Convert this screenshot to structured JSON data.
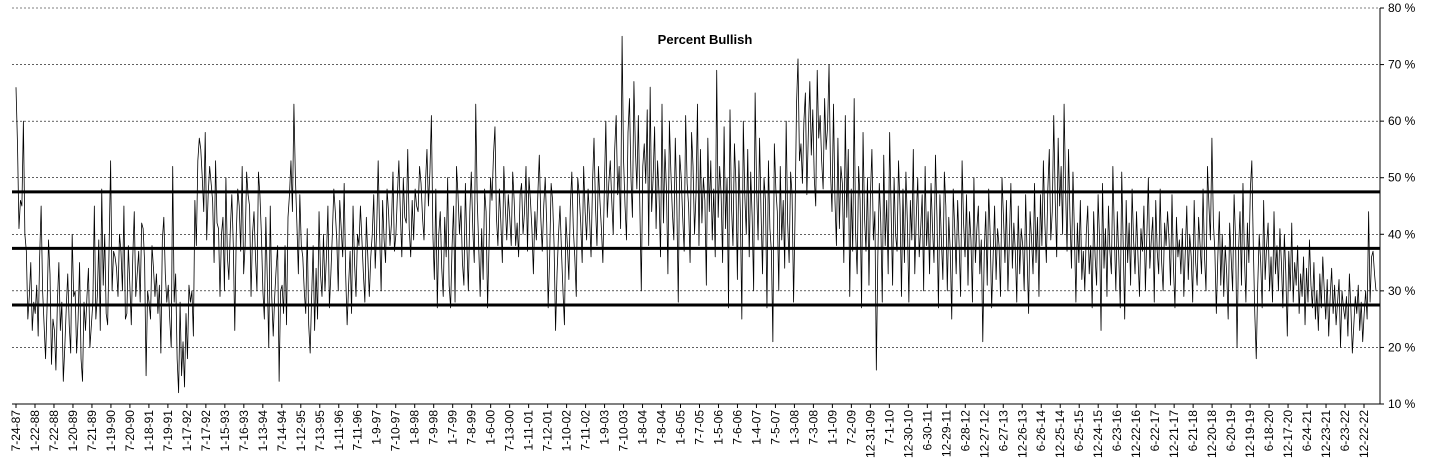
{
  "chart_data": {
    "type": "line",
    "title": "Percent Bullish",
    "xlabel": "",
    "ylabel": "",
    "ylim": [
      10,
      80
    ],
    "y_ticks": [
      10,
      20,
      30,
      40,
      50,
      60,
      70,
      80
    ],
    "y_tick_labels": [
      "10 %",
      "20 %",
      "30 %",
      "40 %",
      "50 %",
      "60 %",
      "70 %",
      "80 %"
    ],
    "y_axis_side": "right",
    "grid": "horizontal dashed",
    "x_tick_labels": [
      "7-24-87",
      "1-22-88",
      "7-22-88",
      "1-20-89",
      "7-21-89",
      "1-19-90",
      "7-20-90",
      "1-18-91",
      "7-19-91",
      "1-17-92",
      "7-17-92",
      "1-15-93",
      "7-16-93",
      "1-13-94",
      "7-14-94",
      "1-12-95",
      "7-13-95",
      "1-11-96",
      "7-11-96",
      "1-9-97",
      "7-10-97",
      "1-8-98",
      "7-9-98",
      "1-7-99",
      "7-8-99",
      "1-6-00",
      "7-13-00",
      "1-11-01",
      "7-12-01",
      "1-10-02",
      "7-11-02",
      "1-9-03",
      "7-10-03",
      "1-8-04",
      "7-8-04",
      "1-6-05",
      "7-7-05",
      "1-5-06",
      "7-6-06",
      "1-4-07",
      "7-5-07",
      "1-3-08",
      "7-3-08",
      "1-1-09",
      "7-2-09",
      "12-31-09",
      "7-1-10",
      "12-30-10",
      "6-30-11",
      "12-29-11",
      "6-28-12",
      "12-27-12",
      "6-27-13",
      "12-26-13",
      "6-26-14",
      "12-25-14",
      "6-25-15",
      "12-24-15",
      "6-23-16",
      "12-22-16",
      "6-22-17",
      "12-21-17",
      "6-21-18",
      "12-20-18",
      "6-20-19",
      "12-19-19",
      "6-18-20",
      "12-17-20",
      "6-24-21",
      "12-23-21",
      "6-23-22",
      "12-22-22"
    ],
    "reference_lines": [
      47.5,
      37.5,
      27.5
    ],
    "series": [
      {
        "color": "#000000",
        "values": [
          66,
          56,
          41,
          46,
          45,
          60,
          40,
          37,
          25,
          29,
          35,
          23,
          28,
          26,
          31,
          22,
          36,
          45,
          30,
          24,
          18,
          27,
          39,
          33,
          17,
          25,
          23,
          16,
          28,
          35,
          23,
          28,
          14,
          20,
          27,
          33,
          24,
          19,
          40,
          29,
          30,
          19,
          25,
          35,
          18,
          14,
          28,
          23,
          29,
          34,
          20,
          24,
          28,
          45,
          25,
          29,
          39,
          23,
          48,
          31,
          40,
          26,
          24,
          38,
          53,
          30,
          37,
          36,
          34,
          29,
          40,
          37,
          30,
          45,
          25,
          26,
          38,
          31,
          24,
          36,
          44,
          29,
          33,
          37,
          28,
          42,
          41,
          35,
          15,
          30,
          28,
          25,
          38,
          34,
          29,
          33,
          26,
          31,
          19,
          39,
          43,
          33,
          28,
          31,
          25,
          20,
          52,
          28,
          33,
          18,
          12,
          28,
          15,
          21,
          13,
          26,
          18,
          31,
          28,
          30,
          22,
          46,
          38,
          53,
          57,
          55,
          50,
          44,
          58,
          39,
          47,
          52,
          49,
          46,
          35,
          53,
          42,
          41,
          29,
          40,
          43,
          30,
          50,
          36,
          32,
          41,
          47,
          38,
          23,
          40,
          48,
          45,
          37,
          52,
          33,
          38,
          51,
          47,
          45,
          29,
          40,
          44,
          36,
          30,
          51,
          47,
          40,
          30,
          25,
          43,
          32,
          20,
          45,
          29,
          22,
          29,
          34,
          38,
          14,
          30,
          31,
          26,
          38,
          24,
          43,
          47,
          53,
          44,
          63,
          50,
          42,
          33,
          47,
          38,
          36,
          30,
          26,
          41,
          24,
          19,
          29,
          38,
          23,
          34,
          25,
          44,
          33,
          29,
          40,
          30,
          36,
          45,
          27,
          33,
          40,
          48,
          44,
          39,
          30,
          46,
          41,
          36,
          49,
          33,
          24,
          31,
          37,
          26,
          45,
          35,
          29,
          40,
          38,
          45,
          39,
          33,
          28,
          43,
          36,
          29,
          36,
          40,
          47,
          34,
          41,
          53,
          40,
          30,
          46,
          39,
          35,
          48,
          44,
          38,
          42,
          51,
          37,
          40,
          47,
          53,
          44,
          36,
          50,
          43,
          42,
          55,
          41,
          36,
          46,
          39,
          48,
          45,
          44,
          52,
          49,
          43,
          39,
          49,
          55,
          45,
          51,
          61,
          40,
          32,
          48,
          27,
          40,
          44,
          34,
          29,
          43,
          36,
          50,
          31,
          27,
          38,
          45,
          28,
          52,
          47,
          40,
          45,
          35,
          31,
          49,
          38,
          30,
          44,
          51,
          41,
          35,
          63,
          46,
          38,
          29,
          41,
          32,
          48,
          44,
          27,
          38,
          50,
          46,
          54,
          59,
          43,
          38,
          48,
          42,
          35,
          52,
          45,
          39,
          47,
          43,
          38,
          51,
          46,
          38,
          42,
          36,
          47,
          49,
          40,
          44,
          52,
          37,
          50,
          46,
          41,
          33,
          44,
          39,
          47,
          54,
          43,
          37,
          45,
          50,
          42,
          27,
          36,
          49,
          46,
          38,
          23,
          33,
          40,
          45,
          37,
          30,
          24,
          43,
          38,
          32,
          45,
          51,
          41,
          36,
          29,
          50,
          47,
          42,
          35,
          52,
          44,
          39,
          48,
          43,
          36,
          49,
          57,
          45,
          38,
          52,
          46,
          41,
          35,
          48,
          60,
          43,
          49,
          53,
          46,
          40,
          55,
          61,
          47,
          52,
          41,
          75,
          53,
          45,
          39,
          58,
          64,
          50,
          43,
          67,
          55,
          48,
          61,
          45,
          30,
          52,
          56,
          49,
          62,
          38,
          66,
          44,
          50,
          59,
          41,
          53,
          47,
          36,
          63,
          42,
          55,
          48,
          33,
          60,
          51,
          44,
          39,
          57,
          46,
          28,
          54,
          50,
          43,
          37,
          61,
          49,
          45,
          35,
          58,
          52,
          40,
          47,
          63,
          38,
          55,
          42,
          50,
          46,
          31,
          57,
          44,
          53,
          39,
          48,
          36,
          69,
          43,
          52,
          47,
          35,
          59,
          41,
          50,
          27,
          62,
          45,
          38,
          56,
          49,
          32,
          53,
          44,
          25,
          60,
          47,
          40,
          55,
          36,
          51,
          43,
          30,
          65,
          48,
          39,
          57,
          44,
          33,
          50,
          46,
          27,
          53,
          41,
          37,
          21,
          56,
          48,
          44,
          30,
          52,
          39,
          46,
          34,
          60,
          42,
          35,
          51,
          47,
          28,
          43,
          63,
          71,
          53,
          56,
          49,
          60,
          65,
          47,
          58,
          67,
          54,
          62,
          50,
          45,
          69,
          57,
          61,
          53,
          48,
          64,
          55,
          59,
          70,
          51,
          44,
          63,
          46,
          38,
          57,
          41,
          52,
          49,
          35,
          61,
          43,
          55,
          29,
          48,
          37,
          64,
          40,
          33,
          52,
          46,
          27,
          58,
          43,
          37,
          50,
          31,
          47,
          55,
          39,
          44,
          16,
          36,
          49,
          42,
          28,
          54,
          38,
          46,
          33,
          58,
          44,
          31,
          50,
          40,
          37,
          53,
          45,
          29,
          48,
          35,
          51,
          42,
          28,
          46,
          39,
          55,
          33,
          43,
          50,
          36,
          41,
          47,
          30,
          52,
          38,
          44,
          33,
          49,
          41,
          35,
          54,
          43,
          27,
          47,
          39,
          32,
          51,
          45,
          30,
          43,
          37,
          25,
          48,
          41,
          33,
          46,
          38,
          29,
          53,
          42,
          36,
          47,
          31,
          44,
          39,
          28,
          50,
          35,
          41,
          45,
          33,
          39,
          21,
          37,
          44,
          31,
          48,
          40,
          27,
          36,
          45,
          32,
          41,
          38,
          29,
          50,
          43,
          35,
          46,
          30,
          39,
          49,
          34,
          42,
          37,
          28,
          45,
          33,
          41,
          38,
          30,
          47,
          36,
          26,
          44,
          39,
          33,
          49,
          35,
          43,
          29,
          47,
          38,
          53,
          42,
          35,
          48,
          55,
          39,
          44,
          61,
          46,
          36,
          57,
          45,
          52,
          40,
          63,
          48,
          37,
          55,
          43,
          34,
          51,
          40,
          28,
          42,
          35,
          46,
          32,
          37,
          30,
          40,
          45,
          33,
          38,
          27,
          44,
          36,
          31,
          47,
          39,
          23,
          49,
          34,
          41,
          29,
          45,
          37,
          33,
          52,
          40,
          30,
          44,
          36,
          27,
          51,
          38,
          25,
          46,
          35,
          42,
          31,
          48,
          39,
          33,
          44,
          36,
          29,
          41,
          37,
          45,
          30,
          40,
          50,
          34,
          39,
          43,
          28,
          46,
          37,
          33,
          48,
          35,
          30,
          42,
          38,
          44,
          39,
          31,
          47,
          34,
          27,
          43,
          36,
          39,
          33,
          41,
          29,
          37,
          45,
          32,
          40,
          36,
          28,
          46,
          35,
          31,
          43,
          38,
          33,
          48,
          36,
          30,
          52,
          45,
          39,
          57,
          42,
          37,
          26,
          36,
          44,
          31,
          40,
          29,
          38,
          33,
          25,
          42,
          36,
          30,
          47,
          39,
          20,
          37,
          44,
          31,
          49,
          36,
          28,
          42,
          35,
          48,
          53,
          38,
          26,
          18,
          31,
          40,
          35,
          27,
          46,
          32,
          38,
          42,
          30,
          36,
          28,
          44,
          33,
          38,
          30,
          41,
          35,
          27,
          40,
          33,
          22,
          37,
          30,
          42,
          28,
          35,
          31,
          38,
          26,
          33,
          29,
          36,
          24,
          34,
          28,
          39,
          31,
          27,
          35,
          25,
          30,
          23,
          33,
          27,
          36,
          30,
          25,
          32,
          22,
          29,
          34,
          26,
          31,
          24,
          28,
          32,
          20,
          30,
          27,
          25,
          29,
          22,
          33,
          27,
          19,
          24,
          29,
          26,
          31,
          23,
          28,
          21,
          26,
          30,
          25,
          44,
          28,
          36,
          37,
          33,
          30
        ]
      }
    ]
  }
}
